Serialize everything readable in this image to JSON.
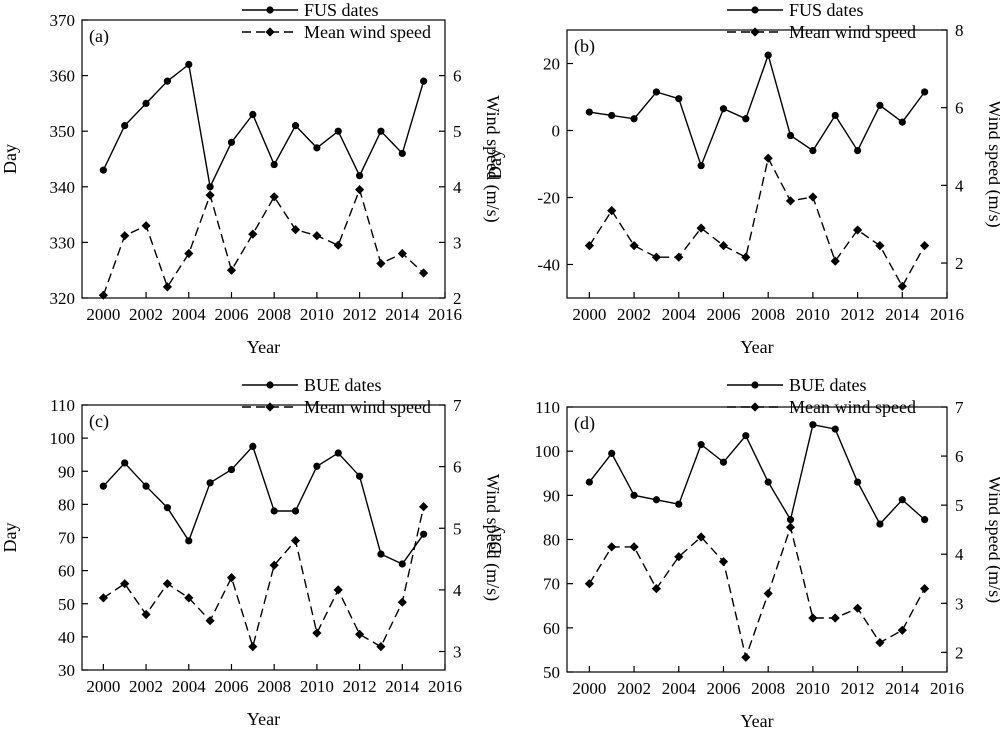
{
  "chart_data": [
    {
      "type": "line",
      "panel_label": "(a)",
      "xlabel": "Year",
      "ylabel": "Day",
      "y2label": "Wind speed (m/s)",
      "xlim": [
        1999,
        2016
      ],
      "xticks": [
        2000,
        2002,
        2004,
        2006,
        2008,
        2010,
        2012,
        2014,
        2016
      ],
      "ylim": [
        320,
        370
      ],
      "yticks": [
        320,
        330,
        340,
        350,
        360,
        370
      ],
      "y2lim": [
        2,
        7
      ],
      "y2ticks": [
        2,
        3,
        4,
        5,
        6
      ],
      "legend_position": "top-center",
      "series": [
        {
          "name": "FUS dates",
          "axis": "left",
          "style": "solid",
          "marker": "circle",
          "x": [
            2000,
            2001,
            2002,
            2003,
            2004,
            2005,
            2006,
            2007,
            2008,
            2009,
            2010,
            2011,
            2012,
            2013,
            2014,
            2015
          ],
          "y": [
            343,
            351,
            355,
            359,
            362,
            340,
            348,
            353,
            344,
            351,
            347,
            350,
            342,
            350,
            346,
            359
          ]
        },
        {
          "name": "Mean wind speed",
          "axis": "right",
          "style": "dashed",
          "marker": "diamond",
          "x": [
            2000,
            2001,
            2002,
            2003,
            2004,
            2005,
            2006,
            2007,
            2008,
            2009,
            2010,
            2011,
            2012,
            2013,
            2014,
            2015
          ],
          "y": [
            2.05,
            3.12,
            3.3,
            2.2,
            2.8,
            3.85,
            2.5,
            3.15,
            3.82,
            3.23,
            3.12,
            2.95,
            3.95,
            2.62,
            2.8,
            2.45
          ]
        }
      ]
    },
    {
      "type": "line",
      "panel_label": "(b)",
      "xlabel": "Year",
      "ylabel": "Day",
      "y2label": "Wind speed (m/s)",
      "xlim": [
        1999,
        2016
      ],
      "xticks": [
        2000,
        2002,
        2004,
        2006,
        2008,
        2010,
        2012,
        2014,
        2016
      ],
      "ylim": [
        -50,
        30
      ],
      "yticks": [
        -40,
        -20,
        0,
        20
      ],
      "y2lim": [
        1.1,
        8
      ],
      "y2ticks": [
        2,
        4,
        6,
        8
      ],
      "legend_position": "top-center",
      "series": [
        {
          "name": "FUS dates",
          "axis": "left",
          "style": "solid",
          "marker": "circle",
          "x": [
            2000,
            2001,
            2002,
            2003,
            2004,
            2005,
            2006,
            2007,
            2008,
            2009,
            2010,
            2011,
            2012,
            2013,
            2014,
            2015
          ],
          "y": [
            5.5,
            4.5,
            3.5,
            11.5,
            9.5,
            -10.5,
            6.5,
            3.5,
            22.5,
            -1.5,
            -6,
            4.5,
            -6,
            7.5,
            2.5,
            11.5
          ]
        },
        {
          "name": "Mean wind speed",
          "axis": "right",
          "style": "dashed",
          "marker": "diamond",
          "x": [
            2000,
            2001,
            2002,
            2003,
            2004,
            2005,
            2006,
            2007,
            2008,
            2009,
            2010,
            2011,
            2012,
            2013,
            2014,
            2015
          ],
          "y": [
            2.45,
            3.35,
            2.45,
            2.15,
            2.15,
            2.9,
            2.45,
            2.15,
            4.7,
            3.6,
            3.7,
            2.05,
            2.85,
            2.45,
            1.4,
            2.45
          ]
        }
      ]
    },
    {
      "type": "line",
      "panel_label": "(c)",
      "xlabel": "Year",
      "ylabel": "Day",
      "y2label": "Wind speed (m/s)",
      "xlim": [
        1999,
        2016
      ],
      "xticks": [
        2000,
        2002,
        2004,
        2006,
        2008,
        2010,
        2012,
        2014,
        2016
      ],
      "ylim": [
        30,
        110
      ],
      "yticks": [
        30,
        40,
        50,
        60,
        70,
        80,
        90,
        100,
        110
      ],
      "y2lim": [
        2.7,
        7
      ],
      "y2ticks": [
        3,
        4,
        5,
        6,
        7
      ],
      "legend_position": "top-center",
      "series": [
        {
          "name": "BUE dates",
          "axis": "left",
          "style": "solid",
          "marker": "circle",
          "x": [
            2000,
            2001,
            2002,
            2003,
            2004,
            2005,
            2006,
            2007,
            2008,
            2009,
            2010,
            2011,
            2012,
            2013,
            2014,
            2015
          ],
          "y": [
            85.5,
            92.5,
            85.5,
            79,
            69,
            86.5,
            90.5,
            97.5,
            78,
            78,
            91.5,
            95.5,
            88.5,
            65,
            62,
            71
          ]
        },
        {
          "name": "Mean wind speed",
          "axis": "right",
          "style": "dashed",
          "marker": "diamond",
          "x": [
            2000,
            2001,
            2002,
            2003,
            2004,
            2005,
            2006,
            2007,
            2008,
            2009,
            2010,
            2011,
            2012,
            2013,
            2014,
            2015
          ],
          "y": [
            3.87,
            4.1,
            3.6,
            4.1,
            3.87,
            3.5,
            4.2,
            3.08,
            4.4,
            4.8,
            3.3,
            4.0,
            3.28,
            3.08,
            3.8,
            5.35
          ]
        }
      ]
    },
    {
      "type": "line",
      "panel_label": "(d)",
      "xlabel": "Year",
      "ylabel": "Day",
      "y2label": "Wind speed (m/s)",
      "xlim": [
        1999,
        2016
      ],
      "xticks": [
        2000,
        2002,
        2004,
        2006,
        2008,
        2010,
        2012,
        2014,
        2016
      ],
      "ylim": [
        50,
        110
      ],
      "yticks": [
        50,
        60,
        70,
        80,
        90,
        100,
        110
      ],
      "y2lim": [
        1.6,
        7
      ],
      "y2ticks": [
        2,
        3,
        4,
        5,
        6,
        7
      ],
      "legend_position": "top-center",
      "series": [
        {
          "name": "BUE dates",
          "axis": "left",
          "style": "solid",
          "marker": "circle",
          "x": [
            2000,
            2001,
            2002,
            2003,
            2004,
            2005,
            2006,
            2007,
            2008,
            2009,
            2010,
            2011,
            2012,
            2013,
            2014,
            2015
          ],
          "y": [
            93,
            99.5,
            90,
            89,
            88,
            101.5,
            97.5,
            103.5,
            93,
            84.5,
            106,
            105,
            93,
            83.5,
            89,
            84.5
          ]
        },
        {
          "name": "Mean wind speed",
          "axis": "right",
          "style": "dashed",
          "marker": "diamond",
          "x": [
            2000,
            2001,
            2002,
            2003,
            2004,
            2005,
            2006,
            2007,
            2008,
            2009,
            2010,
            2011,
            2012,
            2013,
            2014,
            2015
          ],
          "y": [
            3.4,
            4.15,
            4.15,
            3.3,
            3.95,
            4.35,
            3.85,
            1.9,
            3.2,
            4.55,
            2.7,
            2.7,
            2.9,
            2.2,
            2.45,
            3.3
          ]
        }
      ]
    }
  ]
}
